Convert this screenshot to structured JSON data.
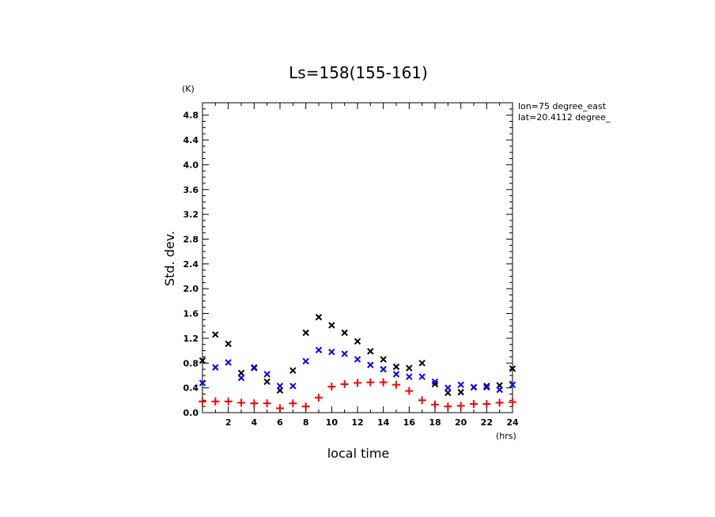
{
  "chart_data": {
    "type": "scatter",
    "title": "Ls=158(155-161)",
    "xlabel": "local time",
    "ylabel": "Std. dev.",
    "y_unit": "(K)",
    "x_unit": "(hrs)",
    "annotations": [
      "lon=75 degree_east",
      "lat=20.4112 degree_"
    ],
    "xlim": [
      0,
      24
    ],
    "ylim": [
      0,
      5
    ],
    "x_ticks": [
      2,
      4,
      6,
      8,
      10,
      12,
      14,
      16,
      18,
      20,
      22,
      24
    ],
    "y_ticks": [
      0.0,
      0.4,
      0.8,
      1.2,
      1.6,
      2.0,
      2.4,
      2.8,
      3.2,
      3.6,
      4.0,
      4.4,
      4.8
    ],
    "grid": false,
    "x": [
      0,
      1,
      2,
      3,
      4,
      5,
      6,
      7,
      8,
      9,
      10,
      11,
      12,
      13,
      14,
      15,
      16,
      17,
      18,
      19,
      20,
      21,
      22,
      23,
      24
    ],
    "series": [
      {
        "marker": "x",
        "color": "#000000",
        "values": [
          0.84,
          1.26,
          1.11,
          0.64,
          0.72,
          0.5,
          0.36,
          0.68,
          1.29,
          1.54,
          1.41,
          1.29,
          1.15,
          0.99,
          0.86,
          0.74,
          0.72,
          0.8,
          0.46,
          0.32,
          0.33,
          0.41,
          0.43,
          0.44,
          0.71
        ]
      },
      {
        "marker": "x",
        "color": "#0000ff",
        "values": [
          0.48,
          0.73,
          0.81,
          0.56,
          0.73,
          0.62,
          0.43,
          0.43,
          0.83,
          1.01,
          0.98,
          0.95,
          0.86,
          0.77,
          0.7,
          0.62,
          0.58,
          0.58,
          0.5,
          0.4,
          0.45,
          0.41,
          0.41,
          0.37,
          0.45
        ]
      },
      {
        "marker": "+",
        "color": "#ff0000",
        "values": [
          0.18,
          0.18,
          0.18,
          0.16,
          0.15,
          0.15,
          0.07,
          0.15,
          0.1,
          0.24,
          0.42,
          0.46,
          0.48,
          0.49,
          0.49,
          0.45,
          0.35,
          0.2,
          0.13,
          0.1,
          0.11,
          0.14,
          0.14,
          0.16,
          0.17
        ]
      }
    ]
  }
}
